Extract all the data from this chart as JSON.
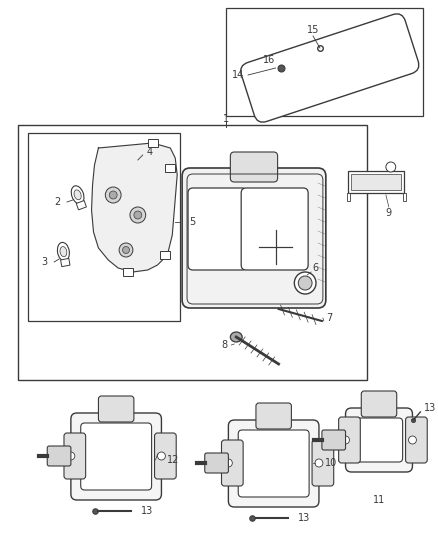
{
  "bg_color": "#ffffff",
  "line_color": "#3a3a3a",
  "fig_width": 4.38,
  "fig_height": 5.33,
  "dpi": 100
}
